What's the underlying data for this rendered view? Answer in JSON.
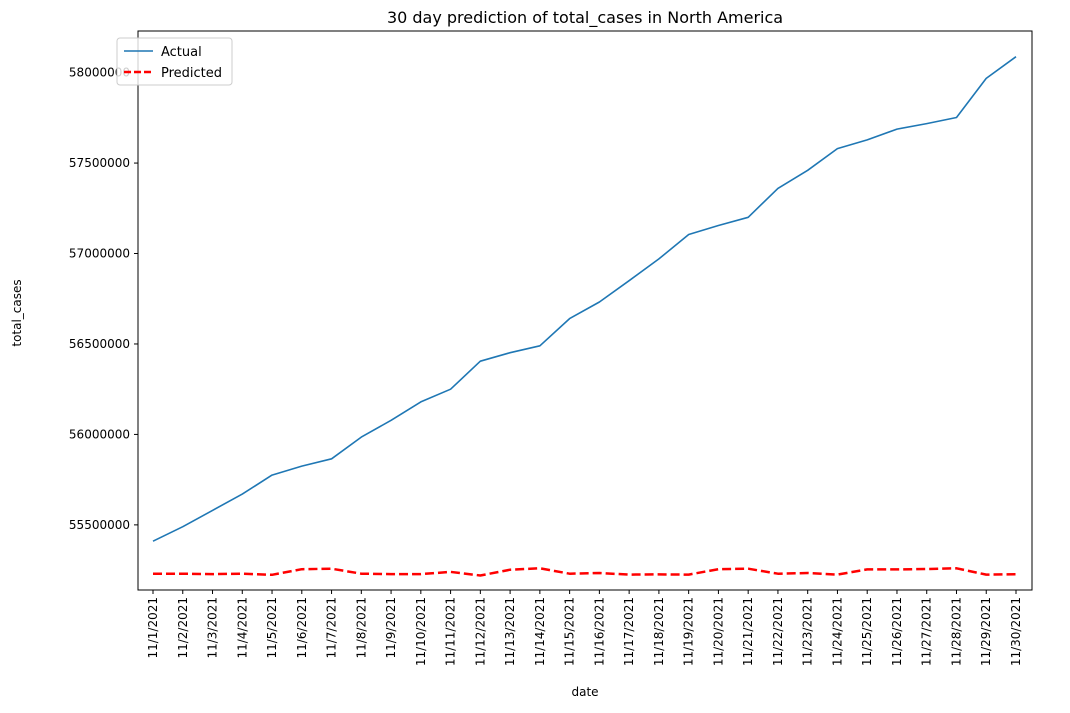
{
  "chart_data": {
    "type": "line",
    "title": "30 day prediction of total_cases in North America",
    "xlabel": "date",
    "ylabel": "total_cases",
    "categories": [
      "11/1/2021",
      "11/2/2021",
      "11/3/2021",
      "11/4/2021",
      "11/5/2021",
      "11/6/2021",
      "11/7/2021",
      "11/8/2021",
      "11/9/2021",
      "11/10/2021",
      "11/11/2021",
      "11/12/2021",
      "11/13/2021",
      "11/14/2021",
      "11/15/2021",
      "11/16/2021",
      "11/17/2021",
      "11/18/2021",
      "11/19/2021",
      "11/20/2021",
      "11/21/2021",
      "11/22/2021",
      "11/23/2021",
      "11/24/2021",
      "11/25/2021",
      "11/26/2021",
      "11/27/2021",
      "11/28/2021",
      "11/29/2021",
      "11/30/2021"
    ],
    "yticks": [
      55500000,
      56000000,
      56500000,
      57000000,
      57500000,
      58000000
    ],
    "ylim": [
      55140000,
      58230000
    ],
    "legend_position": "top-left",
    "grid": false,
    "series": [
      {
        "name": "Actual",
        "color": "#1f77b4",
        "style": "solid",
        "values": [
          55410000,
          55490000,
          55580000,
          55670000,
          55775000,
          55825000,
          55865000,
          55985000,
          56078000,
          56180000,
          56250000,
          56405000,
          56452000,
          56490000,
          56640000,
          56732000,
          56850000,
          56970000,
          57105000,
          57155000,
          57200000,
          57360000,
          57460000,
          57580000,
          57628000,
          57688000,
          57718000,
          57752000,
          57968000,
          58088000
        ]
      },
      {
        "name": "Predicted",
        "color": "#ff0000",
        "style": "dashed",
        "values": [
          55230000,
          55230000,
          55228000,
          55230000,
          55224000,
          55255000,
          55258000,
          55230000,
          55228000,
          55228000,
          55240000,
          55220000,
          55252000,
          55260000,
          55230000,
          55234000,
          55225000,
          55226000,
          55225000,
          55255000,
          55258000,
          55230000,
          55234000,
          55225000,
          55254000,
          55254000,
          55256000,
          55260000,
          55225000,
          55227000
        ]
      }
    ]
  }
}
